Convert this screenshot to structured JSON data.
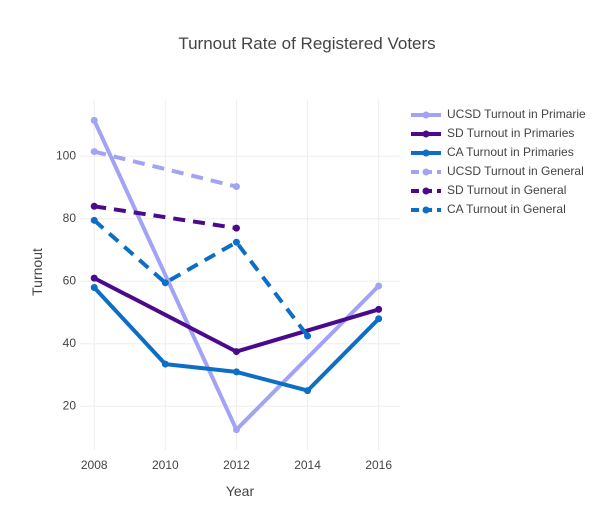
{
  "chart_data": {
    "type": "line",
    "title": "Turnout Rate of Registered Voters",
    "xlabel": "Year",
    "ylabel": "Turnout",
    "xlim": [
      2007.6,
      2016.6
    ],
    "ylim": [
      6,
      118
    ],
    "xticks": [
      2008,
      2010,
      2012,
      2014,
      2016
    ],
    "yticks": [
      20,
      40,
      60,
      80,
      100
    ],
    "grid": true,
    "legend_position": "right",
    "series": [
      {
        "name": "UCSD Turnout in Primarie",
        "color": "#a3a3f5",
        "dash": "solid",
        "x": [
          2008,
          2012,
          2016
        ],
        "y": [
          111.5,
          12.5,
          58.5
        ]
      },
      {
        "name": "SD Turnout in Primaries",
        "color": "#4b0a8c",
        "dash": "solid",
        "x": [
          2008,
          2012,
          2016
        ],
        "y": [
          61,
          37.5,
          51
        ]
      },
      {
        "name": "CA Turnout in Primaries",
        "color": "#0d6ec5",
        "dash": "solid",
        "x": [
          2008,
          2010,
          2012,
          2014,
          2016
        ],
        "y": [
          58,
          33.5,
          31,
          25,
          48
        ]
      },
      {
        "name": "UCSD Turnout in General",
        "color": "#a3a3f5",
        "dash": "dashed",
        "x": [
          2008,
          2012
        ],
        "y": [
          101.5,
          90.3
        ]
      },
      {
        "name": "SD Turnout in General",
        "color": "#4b0a8c",
        "dash": "dashed",
        "x": [
          2008,
          2012
        ],
        "y": [
          84,
          77
        ]
      },
      {
        "name": "CA Turnout in General",
        "color": "#0d6ec5",
        "dash": "dashed",
        "x": [
          2008,
          2010,
          2012,
          2014
        ],
        "y": [
          79.5,
          59.5,
          72.5,
          42.5
        ]
      }
    ]
  }
}
